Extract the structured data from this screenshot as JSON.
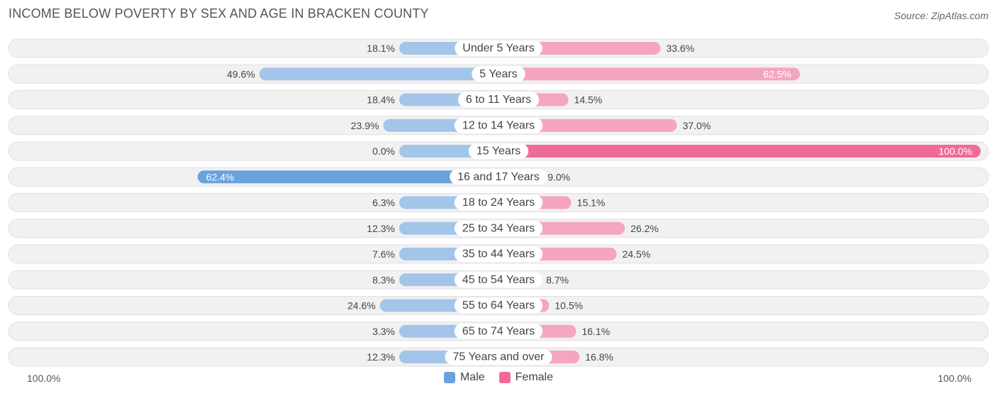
{
  "header": {
    "title": "INCOME BELOW POVERTY BY SEX AND AGE IN BRACKEN COUNTY",
    "source": "Source: ZipAtlas.com"
  },
  "axis": {
    "left_label": "100.0%",
    "right_label": "100.0%"
  },
  "legend": {
    "male_label": "Male",
    "female_label": "Female"
  },
  "colors": {
    "male": "#a4c5ea",
    "male_strong": "#6aa1de",
    "female": "#f6a5be",
    "female_strong": "#f06a97",
    "row_background": "#f1f1f1"
  },
  "chart_data": {
    "type": "bar",
    "orientation": "horizontal-diverging",
    "xlim": [
      0,
      100
    ],
    "categories": [
      "Under 5 Years",
      "5 Years",
      "6 to 11 Years",
      "12 to 14 Years",
      "15 Years",
      "16 and 17 Years",
      "18 to 24 Years",
      "25 to 34 Years",
      "35 to 44 Years",
      "45 to 54 Years",
      "55 to 64 Years",
      "65 to 74 Years",
      "75 Years and over"
    ],
    "series": [
      {
        "name": "Male",
        "values": [
          18.1,
          49.6,
          18.4,
          23.9,
          0.0,
          62.4,
          6.3,
          12.3,
          7.6,
          8.3,
          24.6,
          3.3,
          12.3
        ],
        "labels": [
          "18.1%",
          "49.6%",
          "18.4%",
          "23.9%",
          "0.0%",
          "62.4%",
          "6.3%",
          "12.3%",
          "7.6%",
          "8.3%",
          "24.6%",
          "3.3%",
          "12.3%"
        ]
      },
      {
        "name": "Female",
        "values": [
          33.6,
          62.5,
          14.5,
          37.0,
          100.0,
          9.0,
          15.1,
          26.2,
          24.5,
          8.7,
          10.5,
          16.1,
          16.8
        ],
        "labels": [
          "33.6%",
          "62.5%",
          "14.5%",
          "37.0%",
          "100.0%",
          "9.0%",
          "15.1%",
          "26.2%",
          "24.5%",
          "8.7%",
          "10.5%",
          "16.1%",
          "16.8%"
        ]
      }
    ],
    "legend_position": "bottom-center",
    "grid": false
  }
}
